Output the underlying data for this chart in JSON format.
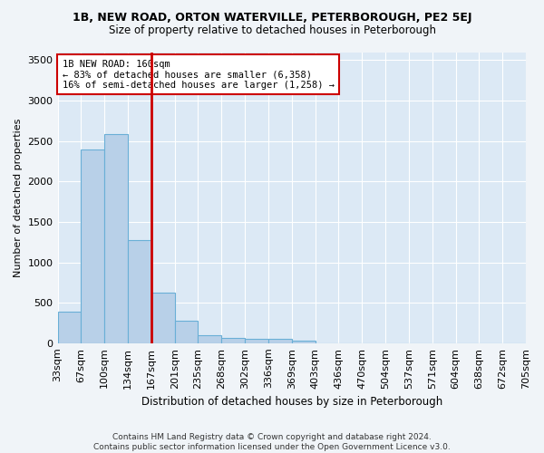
{
  "title1": "1B, NEW ROAD, ORTON WATERVILLE, PETERBOROUGH, PE2 5EJ",
  "title2": "Size of property relative to detached houses in Peterborough",
  "xlabel": "Distribution of detached houses by size in Peterborough",
  "ylabel": "Number of detached properties",
  "bin_labels": [
    "33sqm",
    "67sqm",
    "100sqm",
    "134sqm",
    "167sqm",
    "201sqm",
    "235sqm",
    "268sqm",
    "302sqm",
    "336sqm",
    "369sqm",
    "403sqm",
    "436sqm",
    "470sqm",
    "504sqm",
    "537sqm",
    "571sqm",
    "604sqm",
    "638sqm",
    "672sqm",
    "705sqm"
  ],
  "bar_values": [
    390,
    2390,
    2590,
    1270,
    630,
    280,
    100,
    60,
    55,
    55,
    35,
    0,
    0,
    0,
    0,
    0,
    0,
    0,
    0,
    0
  ],
  "bar_color": "#b8d0e8",
  "bar_edge_color": "#6aafd6",
  "property_line_label": "1B NEW ROAD: 160sqm",
  "annotation_line1": "← 83% of detached houses are smaller (6,358)",
  "annotation_line2": "16% of semi-detached houses are larger (1,258) →",
  "line_color": "#cc0000",
  "annotation_box_edgecolor": "#cc0000",
  "ylim": [
    0,
    3600
  ],
  "yticks": [
    0,
    500,
    1000,
    1500,
    2000,
    2500,
    3000,
    3500
  ],
  "plot_bg_color": "#dce9f5",
  "fig_bg_color": "#f0f4f8",
  "footer1": "Contains HM Land Registry data © Crown copyright and database right 2024.",
  "footer2": "Contains public sector information licensed under the Open Government Licence v3.0."
}
